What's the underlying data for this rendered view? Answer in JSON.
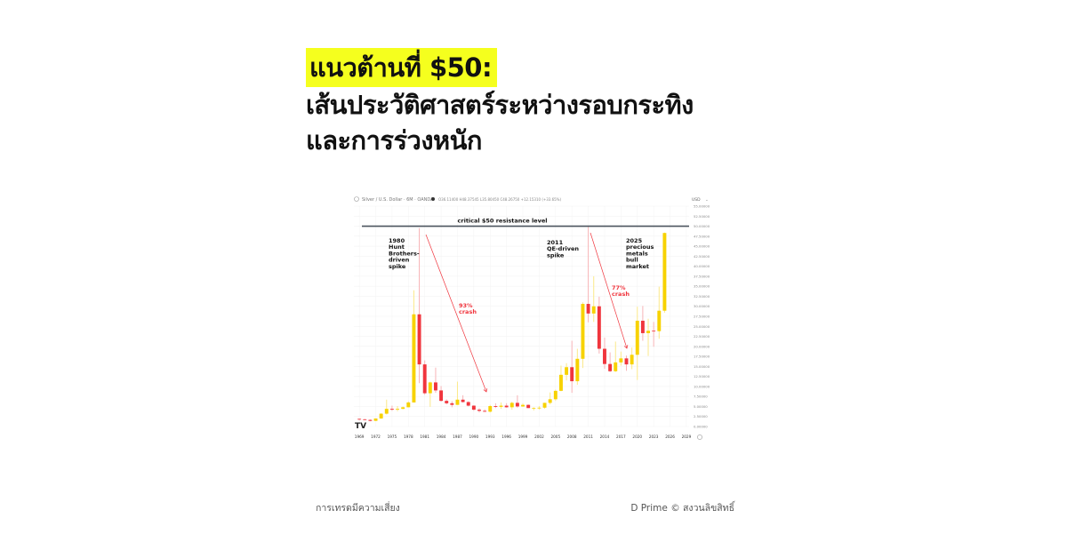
{
  "article": {
    "title_highlight": "แนวต้านที่ $50:",
    "title_line2": "เส้นประวัติศาสตร์ระหว่างรอบกระทิง",
    "title_line3": "และการร่วงหนัก",
    "highlight_color": "#f5ff1e"
  },
  "footer": {
    "risk_notice": "การเทรดมีความเสี่ยง",
    "copyright": "D Prime © สงวนลิขสิทธิ์"
  },
  "chart_data": {
    "type": "candlestick",
    "header": "Silver / U.S. Dollar · 6M · OANDA",
    "ohlc_readout": "O36.11400 H48.37545 L35.80450 C48.26750 +12.15310 (+33.65%)",
    "currency_label": "USD",
    "y_ticks": [
      "55.00000",
      "52.50000",
      "50.00000",
      "47.50000",
      "45.00000",
      "42.50000",
      "40.00000",
      "37.50000",
      "35.00000",
      "32.50000",
      "30.00000",
      "27.50000",
      "25.00000",
      "22.50000",
      "20.00000",
      "17.50000",
      "15.00000",
      "12.50000",
      "10.00000",
      "7.50000",
      "5.00000",
      "2.50000",
      "0.00000"
    ],
    "ylim": [
      0,
      55
    ],
    "x_ticks": [
      "1969",
      "1972",
      "1975",
      "1978",
      "1981",
      "1984",
      "1987",
      "1990",
      "1993",
      "1996",
      "1999",
      "2002",
      "2005",
      "2008",
      "2011",
      "2014",
      "2017",
      "2020",
      "2023",
      "2026",
      "2029"
    ],
    "xlim": [
      1968.5,
      2030
    ],
    "grid": true,
    "colors": {
      "up": "#f7d200",
      "down": "#f0353d",
      "resistance": "#4b555e",
      "annotation": "#f0353d"
    },
    "resistance": {
      "value": 50,
      "label": "critical $50 resistance level"
    },
    "annotations": [
      {
        "text": [
          "1980",
          "Hunt",
          "Brothers-",
          "driven",
          "spike"
        ],
        "color": "#111111"
      },
      {
        "text": [
          "93%",
          "crash"
        ],
        "color": "#f0353d"
      },
      {
        "text": [
          "2011",
          "QE-driven",
          "spike"
        ],
        "color": "#111111"
      },
      {
        "text": [
          "77%",
          "crash"
        ],
        "color": "#f0353d"
      },
      {
        "text": [
          "2025",
          "precious",
          "metals",
          "bull",
          "market"
        ],
        "color": "#111111"
      }
    ],
    "columns": [
      "year",
      "open",
      "high",
      "low",
      "close"
    ],
    "candles": [
      [
        1969,
        1.9,
        2.0,
        1.5,
        1.8
      ],
      [
        1970,
        1.8,
        1.9,
        1.6,
        1.65
      ],
      [
        1971,
        1.65,
        1.75,
        1.3,
        1.4
      ],
      [
        1972,
        1.4,
        2.0,
        1.4,
        2.0
      ],
      [
        1973,
        2.0,
        3.3,
        1.95,
        3.2
      ],
      [
        1974,
        3.2,
        6.7,
        3.0,
        4.4
      ],
      [
        1975,
        4.4,
        5.2,
        3.9,
        4.2
      ],
      [
        1976,
        4.2,
        5.1,
        3.8,
        4.4
      ],
      [
        1977,
        4.4,
        5.0,
        4.3,
        4.8
      ],
      [
        1978,
        4.8,
        6.3,
        4.8,
        6.0
      ],
      [
        1979,
        6.0,
        34,
        6.0,
        28
      ],
      [
        1980,
        28,
        49.5,
        10.8,
        15.5
      ],
      [
        1981,
        15.5,
        16.5,
        7.9,
        8.3
      ],
      [
        1982,
        8.3,
        11.2,
        4.9,
        11
      ],
      [
        1983,
        11,
        14.7,
        8.4,
        9
      ],
      [
        1984,
        9,
        10.1,
        6.2,
        6.4
      ],
      [
        1985,
        6.4,
        6.8,
        5.5,
        5.8
      ],
      [
        1986,
        5.8,
        6.3,
        4.8,
        5.4
      ],
      [
        1987,
        5.4,
        11.2,
        5.4,
        6.7
      ],
      [
        1988,
        6.7,
        7.8,
        6.0,
        6.1
      ],
      [
        1989,
        6.1,
        6.3,
        5.0,
        5.2
      ],
      [
        1990,
        5.2,
        5.3,
        3.9,
        4.2
      ],
      [
        1991,
        4.2,
        4.6,
        3.5,
        3.9
      ],
      [
        1992,
        3.9,
        4.3,
        3.6,
        3.7
      ],
      [
        1993,
        3.7,
        5.4,
        3.5,
        5.1
      ],
      [
        1994,
        5.1,
        5.8,
        4.6,
        4.9
      ],
      [
        1995,
        4.9,
        6.0,
        4.4,
        5.2
      ],
      [
        1996,
        5.2,
        5.8,
        4.7,
        4.8
      ],
      [
        1997,
        4.8,
        6.2,
        4.2,
        5.9
      ],
      [
        1998,
        5.9,
        7.8,
        4.7,
        5.0
      ],
      [
        1999,
        5.0,
        5.8,
        4.9,
        5.4
      ],
      [
        2000,
        5.4,
        5.5,
        4.6,
        4.6
      ],
      [
        2001,
        4.6,
        4.8,
        4.0,
        4.6
      ],
      [
        2002,
        4.6,
        5.1,
        4.2,
        4.7
      ],
      [
        2003,
        4.7,
        5.9,
        4.4,
        5.9
      ],
      [
        2004,
        5.9,
        8.5,
        5.5,
        6.8
      ],
      [
        2005,
        6.8,
        9.2,
        6.4,
        8.9
      ],
      [
        2006,
        8.9,
        15.2,
        8.8,
        12.9
      ],
      [
        2007,
        12.9,
        15.8,
        11.5,
        14.8
      ],
      [
        2008,
        14.8,
        21.4,
        8.4,
        11.3
      ],
      [
        2009,
        11.3,
        19.4,
        10.4,
        16.9
      ],
      [
        2010,
        16.9,
        31,
        14.6,
        30.6
      ],
      [
        2011,
        30.6,
        49.8,
        26,
        28.2
      ],
      [
        2012,
        28.2,
        37.5,
        26.1,
        30.0
      ],
      [
        2013,
        30.0,
        32.4,
        18.2,
        19.4
      ],
      [
        2014,
        19.4,
        22.2,
        14.4,
        15.6
      ],
      [
        2015,
        15.6,
        18.5,
        13.6,
        13.8
      ],
      [
        2016,
        13.8,
        21.2,
        13.6,
        16.0
      ],
      [
        2017,
        16.0,
        18.7,
        15.2,
        17.0
      ],
      [
        2018,
        17.0,
        17.7,
        13.9,
        15.5
      ],
      [
        2019,
        15.5,
        19.7,
        14.3,
        17.9
      ],
      [
        2020,
        17.9,
        29.9,
        11.6,
        26.4
      ],
      [
        2021,
        26.4,
        30.1,
        21.4,
        23.3
      ],
      [
        2022,
        23.3,
        26.9,
        17.6,
        23.9
      ],
      [
        2023,
        23.9,
        26.1,
        19.9,
        23.8
      ],
      [
        2024,
        23.8,
        34.9,
        21.9,
        28.9
      ],
      [
        2025,
        28.9,
        48.4,
        28.4,
        48.3
      ]
    ]
  }
}
